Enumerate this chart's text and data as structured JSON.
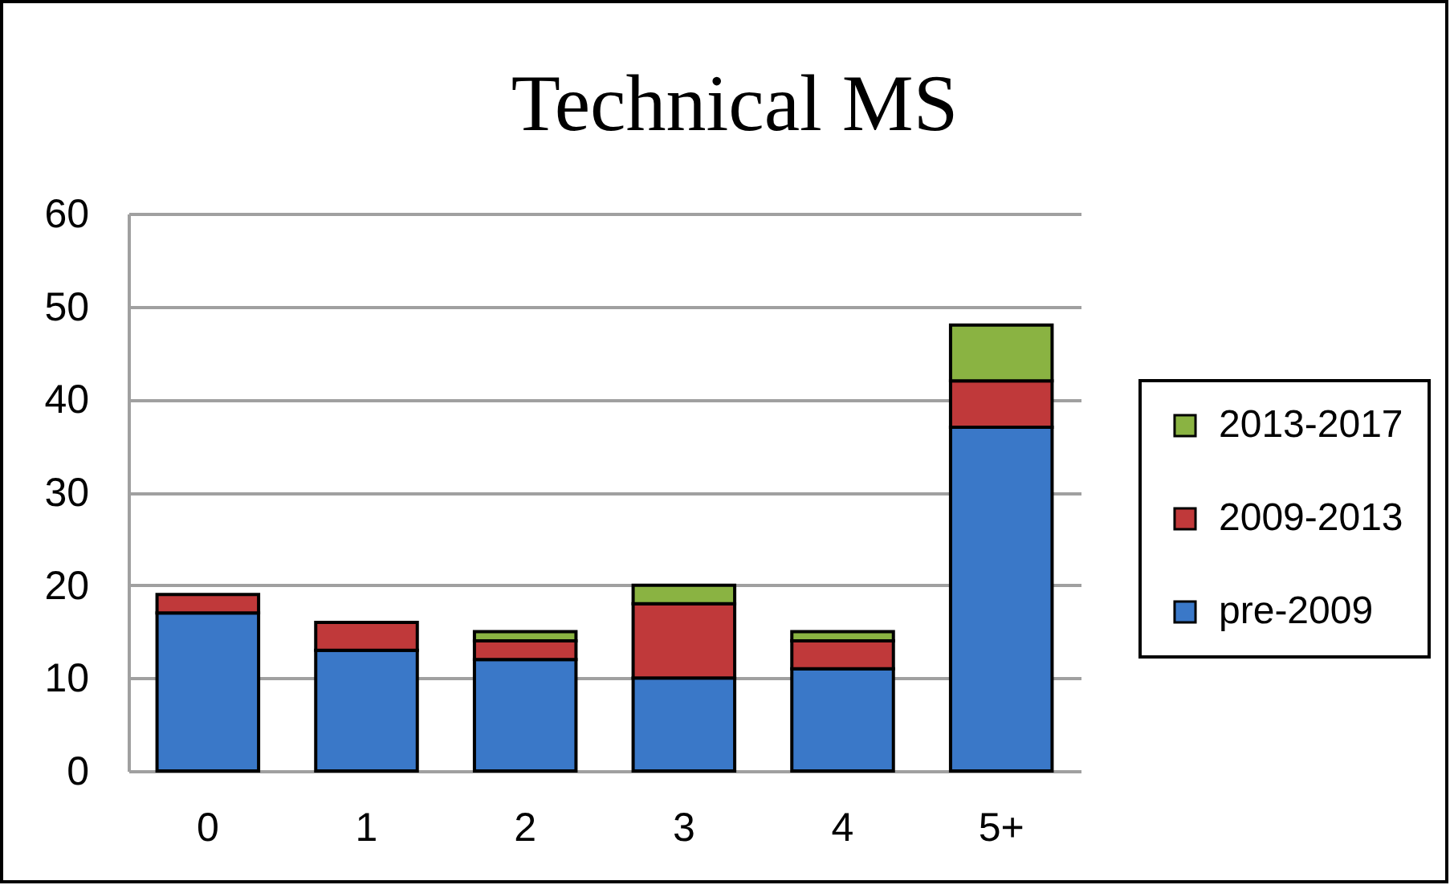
{
  "chart_data": {
    "type": "bar",
    "title": "Technical MS",
    "categories": [
      "0",
      "1",
      "2",
      "3",
      "4",
      "5+"
    ],
    "stacked": true,
    "series": [
      {
        "name": "pre-2009",
        "color": "#3a78c8",
        "values": [
          17,
          13,
          12,
          10,
          11,
          37
        ]
      },
      {
        "name": "2009-2013",
        "color": "#c0393a",
        "values": [
          2,
          3,
          2,
          8,
          3,
          5
        ]
      },
      {
        "name": "2013-2017",
        "color": "#8ab342",
        "values": [
          null,
          null,
          1,
          2,
          1,
          6
        ]
      }
    ],
    "ylim": [
      0,
      60
    ],
    "yticks": [
      0,
      10,
      20,
      30,
      40,
      50,
      60
    ],
    "grid": "y",
    "legend": "right"
  }
}
